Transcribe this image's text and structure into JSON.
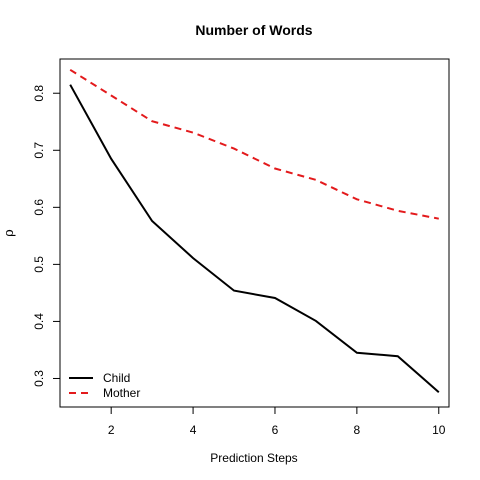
{
  "chart_data": {
    "type": "line",
    "title": "Number of Words",
    "xlabel": "Prediction Steps",
    "ylabel": "ρ",
    "xlim": [
      0.75,
      10.25
    ],
    "ylim": [
      0.25,
      0.86
    ],
    "x_ticks": [
      2,
      4,
      6,
      8,
      10
    ],
    "y_ticks": [
      0.3,
      0.4,
      0.5,
      0.6,
      0.7,
      0.8
    ],
    "grid": false,
    "legend_position": "bottom-left",
    "x": [
      1,
      2,
      3,
      4,
      5,
      6,
      7,
      8,
      9,
      10
    ],
    "series": [
      {
        "name": "Child",
        "color": "#000000",
        "line_style": "solid",
        "values": [
          0.815,
          0.685,
          0.576,
          0.511,
          0.454,
          0.441,
          0.401,
          0.345,
          0.339,
          0.276
        ]
      },
      {
        "name": "Mother",
        "color": "#e31a1c",
        "line_style": "dashed",
        "values": [
          0.841,
          0.796,
          0.751,
          0.731,
          0.703,
          0.668,
          0.648,
          0.614,
          0.594,
          0.58
        ]
      }
    ]
  }
}
